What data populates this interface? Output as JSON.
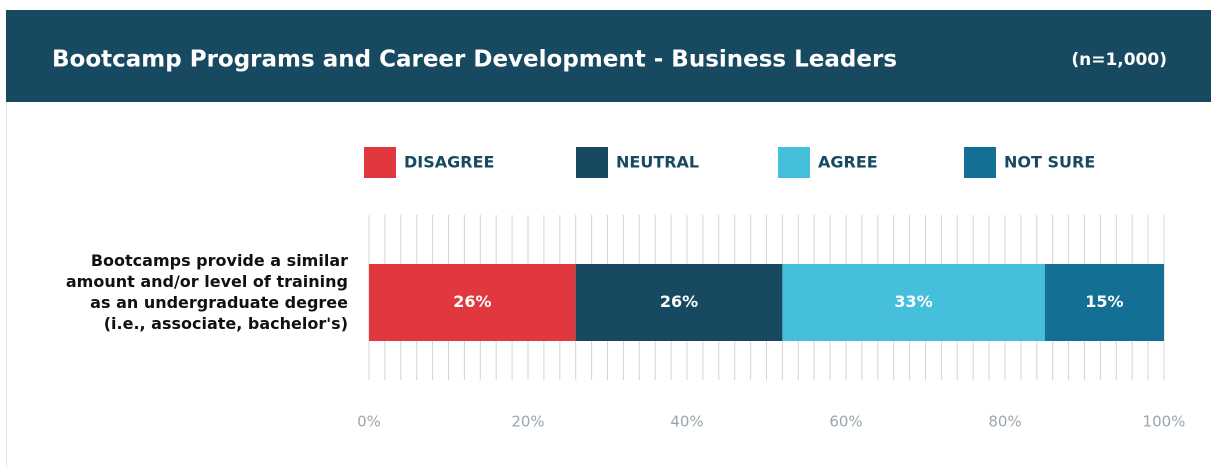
{
  "chart_data": {
    "type": "stacked_bar_horizontal",
    "title": "Bootcamp Programs and Career Development - Business Leaders",
    "subtitle": "(n=1,000)",
    "categories": [
      "Bootcamps provide a similar amount and/or level of training as an undergraduate degree (i.e., associate, bachelor's)"
    ],
    "series": [
      {
        "name": "DISAGREE",
        "color": "#e0383e",
        "values": [
          26
        ],
        "value_labels": [
          "26%"
        ]
      },
      {
        "name": "NEUTRAL",
        "color": "#174a61",
        "values": [
          26
        ],
        "value_labels": [
          "26%"
        ]
      },
      {
        "name": "AGREE",
        "color": "#45bfdc",
        "values": [
          33
        ],
        "value_labels": [
          "33%"
        ]
      },
      {
        "name": "NOT SURE",
        "color": "#146f94",
        "values": [
          15
        ],
        "value_labels": [
          "15%"
        ]
      }
    ],
    "xlim": [
      0,
      100
    ],
    "xticks": [
      {
        "value": 0,
        "label": "0%"
      },
      {
        "value": 20,
        "label": "20%"
      },
      {
        "value": 40,
        "label": "40%"
      },
      {
        "value": 60,
        "label": "60%"
      },
      {
        "value": 80,
        "label": "80%"
      },
      {
        "value": 100,
        "label": "100%"
      }
    ],
    "minor_xticks": [
      0,
      2,
      4,
      6,
      8,
      10,
      12,
      14,
      16,
      18,
      20,
      22,
      24,
      26,
      28,
      30,
      32,
      34,
      36,
      38,
      40,
      42,
      44,
      46,
      48,
      50,
      52,
      54,
      56,
      58,
      60,
      62,
      64,
      66,
      68,
      70,
      72,
      74,
      76,
      78,
      80,
      82,
      84,
      86,
      88,
      90,
      92,
      94,
      96,
      98,
      100
    ],
    "grid": true
  }
}
